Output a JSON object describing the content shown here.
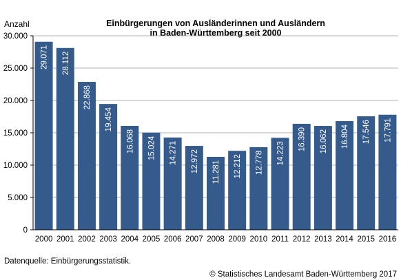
{
  "chart_data": {
    "type": "bar",
    "title_lines": [
      "Einbürgerungen von Ausländerinnen und Ausländern",
      "in Baden-Württemberg seit 2000"
    ],
    "ylabel": "Anzahl",
    "xlabel": "",
    "ylim": [
      0,
      30000
    ],
    "yticks": [
      0,
      5000,
      10000,
      15000,
      20000,
      25000,
      30000
    ],
    "ytick_labels": [
      "0",
      "5.000",
      "10.000",
      "15.000",
      "20.000",
      "25.000",
      "30.000"
    ],
    "grid": true,
    "bar_color": "#355a8c",
    "categories": [
      "2000",
      "2001",
      "2002",
      "2003",
      "2004",
      "2005",
      "2006",
      "2007",
      "2008",
      "2009",
      "2010",
      "2011",
      "2012",
      "2013",
      "2014",
      "2015",
      "2016"
    ],
    "values": [
      29071,
      28112,
      22868,
      19454,
      16068,
      15024,
      14271,
      12972,
      11281,
      12212,
      12778,
      14223,
      16390,
      16062,
      16804,
      17546,
      17791
    ],
    "value_labels": [
      "29.071",
      "28.112",
      "22.868",
      "19.454",
      "16.068",
      "15.024",
      "14.271",
      "12.972",
      "11.281",
      "12.212",
      "12.778",
      "14.223",
      "16.390",
      "16.062",
      "16.804",
      "17.546",
      "17.791"
    ]
  },
  "footer": {
    "source": "Datenquelle: Einbürgerungsstatistik.",
    "copyright": "© Statistisches Landesamt Baden-Württemberg 2017"
  }
}
